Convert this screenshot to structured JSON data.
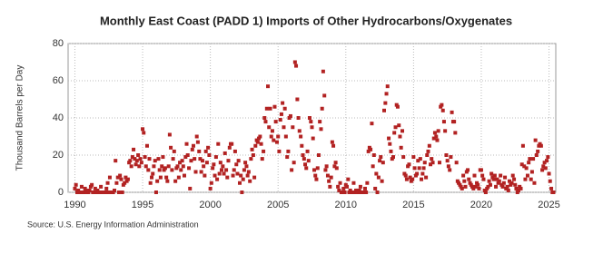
{
  "chart_data": {
    "type": "scatter",
    "title": "Monthly East Coast (PADD 1) Imports of Other Hydrocarbons/Oxygenates",
    "y_label": "Thousand Barrels per Day",
    "source": "Source: U.S. Energy Information Administration",
    "color": "#b22222",
    "grid": true,
    "xlim": [
      1989.5,
      2025.5
    ],
    "xticks": [
      1990,
      1995,
      2000,
      2005,
      2010,
      2015,
      2020,
      2025
    ],
    "ylim": [
      0,
      80
    ],
    "yticks": [
      0,
      20,
      40,
      60,
      80
    ],
    "x": [
      1990,
      1990.08,
      1990.17,
      1990.25,
      1990.33,
      1990.42,
      1990.5,
      1990.58,
      1990.67,
      1990.75,
      1990.83,
      1990.92,
      1991,
      1991.08,
      1991.17,
      1991.25,
      1991.33,
      1991.42,
      1991.5,
      1991.58,
      1991.67,
      1991.75,
      1991.83,
      1991.92,
      1992,
      1992.08,
      1992.17,
      1992.25,
      1992.33,
      1992.42,
      1992.5,
      1992.58,
      1992.67,
      1992.75,
      1992.83,
      1992.92,
      1993,
      1993.08,
      1993.17,
      1993.25,
      1993.33,
      1993.42,
      1993.5,
      1993.58,
      1993.67,
      1993.75,
      1993.83,
      1993.92,
      1994,
      1994.08,
      1994.17,
      1994.25,
      1994.33,
      1994.42,
      1994.5,
      1994.58,
      1994.67,
      1994.75,
      1994.83,
      1994.92,
      1995,
      1995.08,
      1995.17,
      1995.25,
      1995.33,
      1995.42,
      1995.5,
      1995.58,
      1995.67,
      1995.75,
      1995.83,
      1995.92,
      1996,
      1996.08,
      1996.17,
      1996.25,
      1996.33,
      1996.42,
      1996.5,
      1996.58,
      1996.67,
      1996.75,
      1996.83,
      1996.92,
      1997,
      1997.08,
      1997.17,
      1997.25,
      1997.33,
      1997.42,
      1997.5,
      1997.58,
      1997.67,
      1997.75,
      1997.83,
      1997.92,
      1998,
      1998.08,
      1998.17,
      1998.25,
      1998.33,
      1998.42,
      1998.5,
      1998.58,
      1998.67,
      1998.75,
      1998.83,
      1998.92,
      1999,
      1999.08,
      1999.17,
      1999.25,
      1999.33,
      1999.42,
      1999.5,
      1999.58,
      1999.67,
      1999.75,
      1999.83,
      1999.92,
      2000,
      2000.08,
      2000.17,
      2000.25,
      2000.33,
      2000.42,
      2000.5,
      2000.58,
      2000.67,
      2000.75,
      2000.83,
      2000.92,
      2001,
      2001.08,
      2001.17,
      2001.25,
      2001.33,
      2001.42,
      2001.5,
      2001.58,
      2001.67,
      2001.75,
      2001.83,
      2001.92,
      2002,
      2002.08,
      2002.17,
      2002.25,
      2002.33,
      2002.42,
      2002.5,
      2002.58,
      2002.67,
      2002.75,
      2002.83,
      2002.92,
      2003,
      2003.08,
      2003.17,
      2003.25,
      2003.33,
      2003.42,
      2003.5,
      2003.58,
      2003.67,
      2003.75,
      2003.83,
      2003.92,
      2004,
      2004.08,
      2004.17,
      2004.25,
      2004.33,
      2004.42,
      2004.5,
      2004.58,
      2004.67,
      2004.75,
      2004.83,
      2004.92,
      2005,
      2005.08,
      2005.17,
      2005.25,
      2005.33,
      2005.42,
      2005.5,
      2005.58,
      2005.67,
      2005.75,
      2005.83,
      2005.92,
      2006,
      2006.08,
      2006.17,
      2006.25,
      2006.33,
      2006.42,
      2006.5,
      2006.58,
      2006.67,
      2006.75,
      2006.83,
      2006.92,
      2007,
      2007.08,
      2007.17,
      2007.25,
      2007.33,
      2007.42,
      2007.5,
      2007.58,
      2007.67,
      2007.75,
      2007.83,
      2007.92,
      2008,
      2008.08,
      2008.17,
      2008.25,
      2008.33,
      2008.42,
      2008.5,
      2008.58,
      2008.67,
      2008.75,
      2008.83,
      2008.92,
      2009,
      2009.08,
      2009.17,
      2009.25,
      2009.33,
      2009.42,
      2009.5,
      2009.58,
      2009.67,
      2009.75,
      2009.83,
      2009.92,
      2010,
      2010.08,
      2010.17,
      2010.25,
      2010.33,
      2010.42,
      2010.5,
      2010.58,
      2010.67,
      2010.75,
      2010.83,
      2010.92,
      2011,
      2011.08,
      2011.17,
      2011.25,
      2011.33,
      2011.42,
      2011.5,
      2011.58,
      2011.67,
      2011.75,
      2011.83,
      2011.92,
      2012,
      2012.08,
      2012.17,
      2012.25,
      2012.33,
      2012.42,
      2012.5,
      2012.58,
      2012.67,
      2012.75,
      2012.83,
      2012.92,
      2013,
      2013.08,
      2013.17,
      2013.25,
      2013.33,
      2013.42,
      2013.5,
      2013.58,
      2013.67,
      2013.75,
      2013.83,
      2013.92,
      2014,
      2014.08,
      2014.17,
      2014.25,
      2014.33,
      2014.42,
      2014.5,
      2014.58,
      2014.67,
      2014.75,
      2014.83,
      2014.92,
      2015,
      2015.08,
      2015.17,
      2015.25,
      2015.33,
      2015.42,
      2015.5,
      2015.58,
      2015.67,
      2015.75,
      2015.83,
      2015.92,
      2016,
      2016.08,
      2016.17,
      2016.25,
      2016.33,
      2016.42,
      2016.5,
      2016.58,
      2016.67,
      2016.75,
      2016.83,
      2016.92,
      2017,
      2017.08,
      2017.17,
      2017.25,
      2017.33,
      2017.42,
      2017.5,
      2017.58,
      2017.67,
      2017.75,
      2017.83,
      2017.92,
      2018,
      2018.08,
      2018.17,
      2018.25,
      2018.33,
      2018.42,
      2018.5,
      2018.58,
      2018.67,
      2018.75,
      2018.83,
      2018.92,
      2019,
      2019.08,
      2019.17,
      2019.25,
      2019.33,
      2019.42,
      2019.5,
      2019.58,
      2019.67,
      2019.75,
      2019.83,
      2019.92,
      2020,
      2020.08,
      2020.17,
      2020.25,
      2020.33,
      2020.42,
      2020.5,
      2020.58,
      2020.67,
      2020.75,
      2020.83,
      2020.92,
      2021,
      2021.08,
      2021.17,
      2021.25,
      2021.33,
      2021.42,
      2021.5,
      2021.58,
      2021.67,
      2021.75,
      2021.83,
      2021.92,
      2022,
      2022.08,
      2022.17,
      2022.25,
      2022.33,
      2022.42,
      2022.5,
      2022.58,
      2022.67,
      2022.75,
      2022.83,
      2022.92,
      2023,
      2023.08,
      2023.17,
      2023.25,
      2023.33,
      2023.42,
      2023.5,
      2023.58,
      2023.67,
      2023.75,
      2023.83,
      2023.92,
      2024,
      2024.08,
      2024.17,
      2024.25,
      2024.33,
      2024.42,
      2024.5,
      2024.58,
      2024.67,
      2024.75,
      2024.83,
      2024.92,
      2025,
      2025.08,
      2025.17,
      2025.25,
      2025.33
    ],
    "values": [
      2,
      4,
      0,
      1,
      0,
      0,
      3,
      0,
      0,
      2,
      1,
      0,
      0,
      1,
      3,
      4,
      0,
      0,
      2,
      0,
      1,
      0,
      0,
      3,
      0,
      0,
      0,
      0,
      2,
      5,
      0,
      8,
      0,
      0,
      0,
      1,
      17,
      5,
      8,
      0,
      9,
      7,
      0,
      4,
      5,
      8,
      6,
      7,
      16,
      17,
      14,
      19,
      23,
      18,
      15,
      17,
      20,
      14,
      18,
      16,
      34,
      32,
      19,
      14,
      25,
      12,
      18,
      5,
      8,
      10,
      14,
      17,
      0,
      6,
      18,
      12,
      8,
      14,
      19,
      12,
      13,
      8,
      6,
      14,
      31,
      24,
      12,
      18,
      22,
      6,
      13,
      14,
      8,
      16,
      12,
      17,
      14,
      9,
      19,
      26,
      20,
      13,
      2,
      17,
      23,
      25,
      18,
      11,
      30,
      27,
      22,
      18,
      11,
      17,
      14,
      9,
      22,
      16,
      24,
      20,
      2,
      5,
      13,
      15,
      9,
      19,
      7,
      26,
      10,
      16,
      12,
      14,
      10,
      21,
      12,
      8,
      17,
      24,
      26,
      26,
      9,
      12,
      22,
      15,
      10,
      17,
      5,
      9,
      0,
      7,
      12,
      16,
      14,
      9,
      11,
      6,
      18,
      23,
      20,
      8,
      25,
      28,
      27,
      29,
      30,
      26,
      18,
      22,
      40,
      38,
      45,
      57,
      35,
      45,
      30,
      33,
      28,
      46,
      38,
      27,
      30,
      22,
      39,
      42,
      48,
      35,
      45,
      30,
      19,
      22,
      40,
      41,
      12,
      35,
      16,
      70,
      68,
      50,
      40,
      33,
      30,
      25,
      20,
      18,
      15,
      13,
      22,
      17,
      40,
      38,
      35,
      29,
      12,
      9,
      7,
      13,
      20,
      38,
      34,
      45,
      65,
      52,
      12,
      14,
      9,
      6,
      3,
      8,
      27,
      25,
      14,
      16,
      13,
      3,
      1,
      5,
      0,
      0,
      2,
      0,
      4,
      3,
      7,
      0,
      1,
      0,
      0,
      5,
      0,
      1,
      1,
      0,
      1,
      3,
      0,
      0,
      0,
      2,
      0,
      5,
      22,
      24,
      23,
      37,
      14,
      20,
      2,
      10,
      0,
      8,
      17,
      19,
      6,
      16,
      44,
      48,
      53,
      57,
      29,
      26,
      22,
      18,
      19,
      32,
      35,
      47,
      46,
      36,
      30,
      24,
      33,
      19,
      10,
      9,
      7,
      14,
      15,
      8,
      6,
      7,
      19,
      13,
      9,
      10,
      17,
      13,
      18,
      7,
      10,
      13,
      16,
      8,
      20,
      22,
      25,
      15,
      18,
      16,
      29,
      32,
      30,
      28,
      33,
      16,
      46,
      47,
      44,
      38,
      33,
      20,
      17,
      14,
      12,
      19,
      43,
      38,
      38,
      32,
      16,
      6,
      5,
      4,
      3,
      2,
      9,
      6,
      3,
      11,
      12,
      7,
      5,
      4,
      3,
      2,
      9,
      3,
      5,
      4,
      2,
      12,
      12,
      9,
      7,
      1,
      0,
      2,
      3,
      6,
      4,
      10,
      8,
      7,
      9,
      3,
      7,
      5,
      6,
      9,
      4,
      3,
      5,
      8,
      2,
      3,
      1,
      6,
      4,
      5,
      9,
      7,
      4,
      2,
      0,
      1,
      3,
      2,
      15,
      25,
      14,
      7,
      13,
      9,
      16,
      18,
      7,
      11,
      18,
      5,
      28,
      20,
      22,
      25,
      26,
      25,
      12,
      14,
      16,
      13,
      17,
      19,
      10,
      6,
      2,
      0,
      0
    ]
  }
}
